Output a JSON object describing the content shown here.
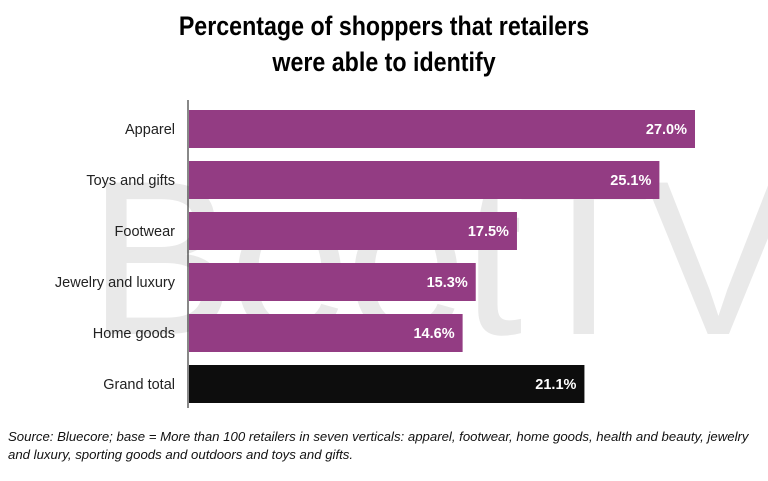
{
  "chart_data": {
    "type": "bar",
    "orientation": "horizontal",
    "title": [
      "Percentage of shoppers that retailers",
      "were able to identify"
    ],
    "categories": [
      "Apparel",
      "Toys and gifts",
      "Footwear",
      "Jewelry and luxury",
      "Home goods",
      "Grand total"
    ],
    "values": [
      27.0,
      25.1,
      17.5,
      15.3,
      14.6,
      21.1
    ],
    "value_labels": [
      "27.0%",
      "25.1%",
      "17.5%",
      "15.3%",
      "14.6%",
      "21.1%"
    ],
    "bar_colors": [
      "#933c83",
      "#933c83",
      "#933c83",
      "#933c83",
      "#933c83",
      "#0d0d0d"
    ],
    "xlim": [
      0,
      27.7
    ],
    "xlabel": "",
    "ylabel": "",
    "grid": false,
    "legend": "none"
  },
  "watermark": "BeetTV",
  "source_note": "Source: Bluecore; base = More than 100 retailers in seven verticals: apparel, footwear, home goods, health and beauty, jewelry and luxury, sporting goods and outdoors and toys and gifts."
}
